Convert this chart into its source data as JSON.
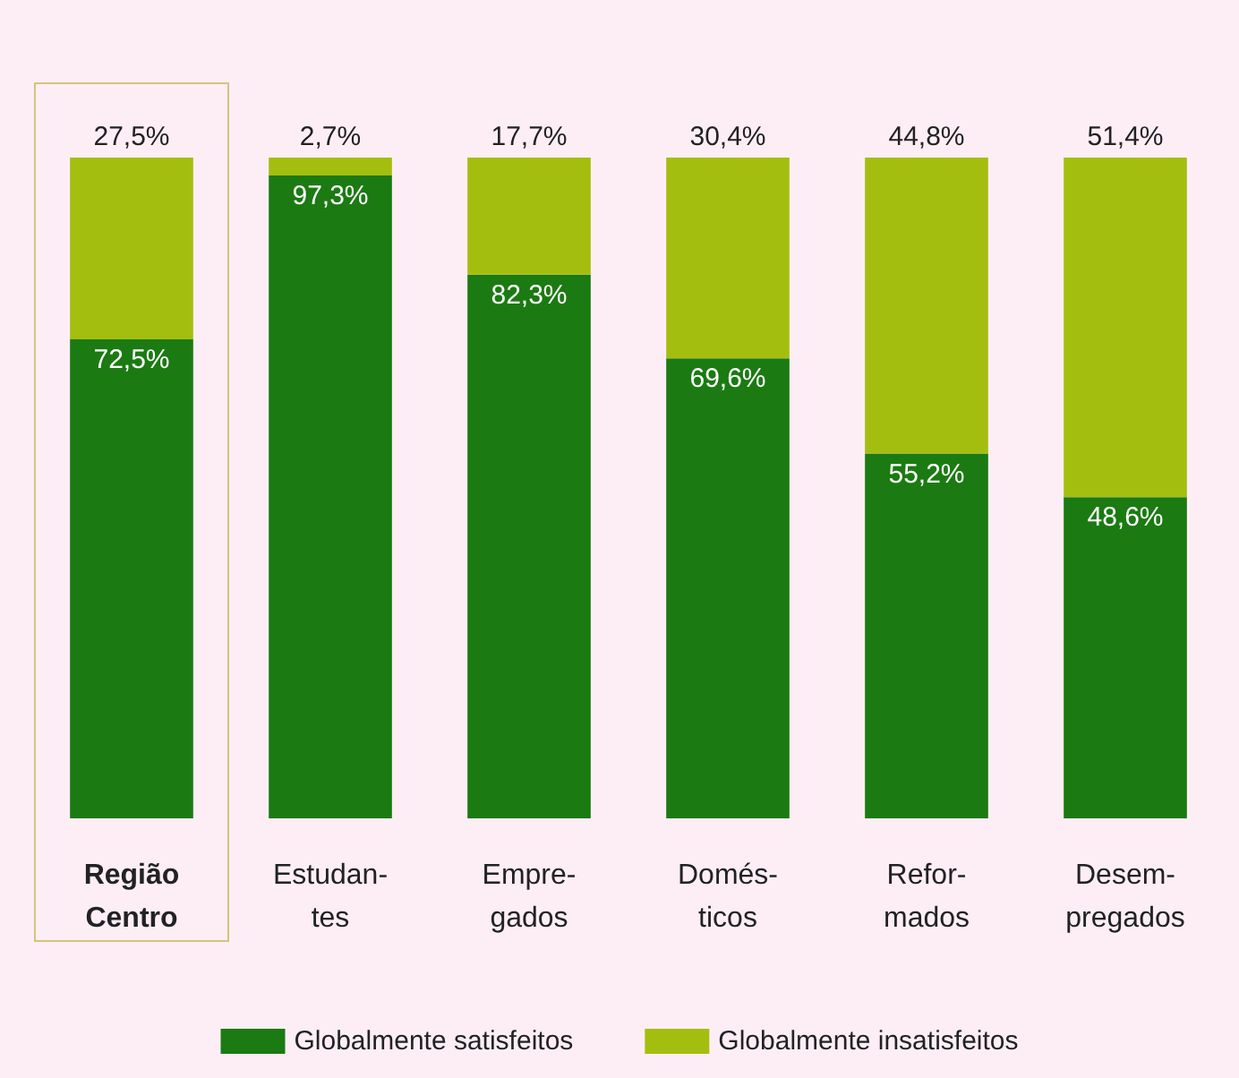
{
  "chart_data": {
    "type": "bar",
    "categories": [
      "Região\nCentro",
      "Estudan-\ntes",
      "Empre-\ngados",
      "Domés-\nticos",
      "Refor-\nmados",
      "Desem-\npregados"
    ],
    "stacked": true,
    "series": [
      {
        "name": "Globalmente satisfeitos",
        "color": "#1b7a12",
        "values": [
          72.5,
          97.3,
          82.3,
          69.6,
          55.2,
          48.6
        ],
        "value_labels": [
          "72,5%",
          "97,3%",
          "82,3%",
          "69,6%",
          "55,2%",
          "48,6%"
        ]
      },
      {
        "name": "Globalmente insatisfeitos",
        "color": "#a4be10",
        "values": [
          27.5,
          2.7,
          17.7,
          30.4,
          44.8,
          51.4
        ],
        "value_labels": [
          "27,5%",
          "2,7%",
          "17,7%",
          "30,4%",
          "44,8%",
          "51,4%"
        ]
      }
    ],
    "legend": "bottom"
  }
}
